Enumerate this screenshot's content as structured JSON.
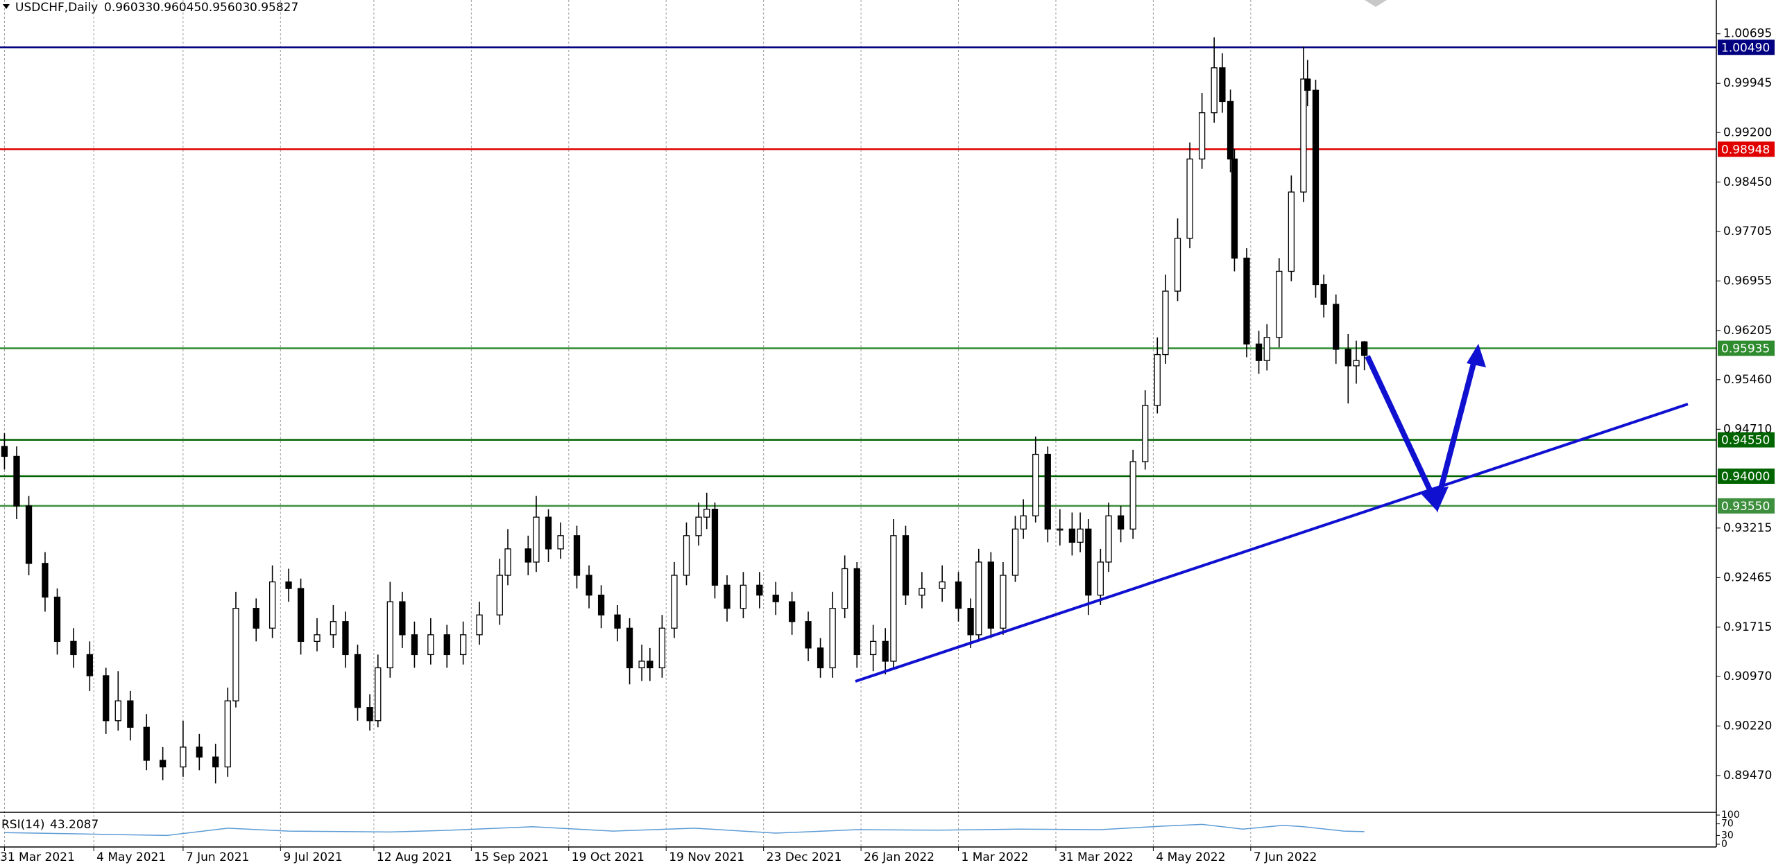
{
  "chart_data": {
    "type": "candlestick",
    "title": "USDCHF,Daily",
    "quote": [
      0.96033,
      0.96045,
      0.95603,
      0.95827
    ],
    "xlim": [
      -1.1,
      421.7
    ],
    "xticks": [
      {
        "value": 0,
        "label": "31 Mar 2021"
      },
      {
        "value": 22,
        "label": "4 May 2021"
      },
      {
        "value": 44,
        "label": "7 Jun 2021"
      },
      {
        "value": 68,
        "label": "9 Jul 2021"
      },
      {
        "value": 91,
        "label": "12 Aug 2021"
      },
      {
        "value": 115,
        "label": "15 Sep 2021"
      },
      {
        "value": 139,
        "label": "19 Oct 2021"
      },
      {
        "value": 163,
        "label": "19 Nov 2021"
      },
      {
        "value": 187,
        "label": "23 Dec 2021"
      },
      {
        "value": 211,
        "label": "26 Jan 2022"
      },
      {
        "value": 235,
        "label": "1 Mar 2022"
      },
      {
        "value": 259,
        "label": "31 Mar 2022"
      },
      {
        "value": 283,
        "label": "4 May 2022"
      },
      {
        "value": 307,
        "label": "7 Jun 2022"
      }
    ],
    "ylim": [
      0.88934,
      1.01206
    ],
    "yticks": [
      1.00695,
      0.99945,
      {
        "value": 0.992,
        "label": "0.99200"
      },
      {
        "value": 0.9845,
        "label": "0.98450"
      },
      0.97705,
      0.96955,
      0.96205,
      {
        "value": 0.9546,
        "label": "0.95460"
      },
      {
        "value": 0.9471,
        "label": "0.94710"
      },
      0.93215,
      0.92465,
      0.91715,
      {
        "value": 0.9097,
        "label": "0.90970"
      },
      {
        "value": 0.9022,
        "label": "0.90220"
      },
      {
        "value": 0.8947,
        "label": "0.89470"
      }
    ],
    "grid": true,
    "up_color": "#ffffff",
    "down_color": "#000000",
    "levels": [
      {
        "value": 1.0049,
        "label": "1.00490",
        "color": "#000080"
      },
      {
        "value": 0.98948,
        "color": "#e00000"
      },
      {
        "value": 0.95935,
        "color": "#2e8b2e"
      },
      {
        "value": 0.9455,
        "label": "0.94550",
        "color": "#006400"
      },
      {
        "value": 0.94,
        "label": "0.94000",
        "color": "#006400"
      },
      {
        "value": 0.9355,
        "label": "0.93550",
        "color": "#3d8f3d"
      }
    ],
    "x": [
      0,
      3,
      6,
      10,
      13,
      17,
      21,
      25,
      28,
      31,
      35,
      39,
      44,
      48,
      52,
      55,
      57,
      62,
      66,
      70,
      73,
      77,
      81,
      84,
      87,
      90,
      92,
      95,
      98,
      101,
      105,
      109,
      113,
      117,
      122,
      124,
      129,
      131,
      134,
      137,
      141,
      144,
      147,
      151,
      154,
      157,
      159,
      162,
      165,
      168,
      171,
      173,
      175,
      178,
      182,
      186,
      190,
      194,
      198,
      201,
      204,
      207,
      210,
      214,
      217,
      219,
      222,
      226,
      231,
      235,
      238,
      240,
      243,
      246,
      249,
      251,
      254,
      257,
      260,
      263,
      265,
      267,
      270,
      272,
      275,
      278,
      281,
      284,
      286,
      289,
      292,
      295,
      298,
      300,
      302,
      303,
      306,
      309,
      311,
      314,
      317,
      320,
      321,
      323,
      325,
      328,
      331,
      333,
      335
    ],
    "open": [
      0.9445,
      0.943,
      0.9355,
      0.9268,
      0.9217,
      0.915,
      0.913,
      0.9098,
      0.903,
      0.906,
      0.902,
      0.897,
      0.896,
      0.899,
      0.8975,
      0.896,
      0.906,
      0.92,
      0.917,
      0.924,
      0.923,
      0.915,
      0.916,
      0.918,
      0.913,
      0.905,
      0.903,
      0.911,
      0.921,
      0.916,
      0.913,
      0.916,
      0.913,
      0.916,
      0.919,
      0.925,
      0.929,
      0.927,
      0.9338,
      0.929,
      0.931,
      0.925,
      0.922,
      0.919,
      0.917,
      0.911,
      0.912,
      0.911,
      0.917,
      0.925,
      0.931,
      0.9338,
      0.935,
      0.9235,
      0.92,
      0.9235,
      0.922,
      0.921,
      0.918,
      0.914,
      0.911,
      0.92,
      0.926,
      0.913,
      0.915,
      0.912,
      0.931,
      0.922,
      0.923,
      0.924,
      0.92,
      0.916,
      0.927,
      0.917,
      0.925,
      0.932,
      0.934,
      0.9433,
      0.932,
      0.932,
      0.93,
      0.932,
      0.922,
      0.927,
      0.934,
      0.932,
      0.9422,
      0.9507,
      0.9584,
      0.968,
      0.976,
      0.988,
      0.995,
      1.0018,
      0.9967,
      0.988,
      0.973,
      0.96,
      0.9575,
      0.961,
      0.971,
      0.983,
      1.0001,
      0.9984,
      0.969,
      0.966,
      0.9592,
      0.9567,
      0.96033
    ],
    "high": [
      0.9465,
      0.9445,
      0.937,
      0.9285,
      0.923,
      0.917,
      0.915,
      0.911,
      0.9105,
      0.9075,
      0.904,
      0.899,
      0.903,
      0.901,
      0.8995,
      0.908,
      0.9225,
      0.9215,
      0.9265,
      0.926,
      0.9245,
      0.9185,
      0.9205,
      0.9195,
      0.9145,
      0.907,
      0.913,
      0.924,
      0.9225,
      0.918,
      0.9185,
      0.9175,
      0.918,
      0.921,
      0.9275,
      0.932,
      0.931,
      0.937,
      0.935,
      0.933,
      0.9325,
      0.9265,
      0.9235,
      0.9205,
      0.9185,
      0.9145,
      0.914,
      0.919,
      0.927,
      0.933,
      0.936,
      0.9375,
      0.936,
      0.925,
      0.9255,
      0.9255,
      0.924,
      0.9225,
      0.9195,
      0.9155,
      0.9225,
      0.928,
      0.927,
      0.9175,
      0.917,
      0.9335,
      0.9325,
      0.9255,
      0.9265,
      0.9255,
      0.9215,
      0.929,
      0.9285,
      0.927,
      0.934,
      0.9365,
      0.946,
      0.9445,
      0.935,
      0.9345,
      0.9345,
      0.9335,
      0.929,
      0.936,
      0.9355,
      0.944,
      0.953,
      0.961,
      0.9705,
      0.979,
      0.9905,
      0.998,
      1.0064,
      1.004,
      0.9985,
      0.9895,
      0.9745,
      0.962,
      0.963,
      0.973,
      0.9855,
      1.005,
      1.003,
      1.0,
      0.9705,
      0.9675,
      0.9615,
      0.9605,
      0.96045
    ],
    "low": [
      0.941,
      0.9335,
      0.925,
      0.9195,
      0.913,
      0.911,
      0.9075,
      0.901,
      0.9015,
      0.9,
      0.8955,
      0.894,
      0.8945,
      0.8955,
      0.8935,
      0.8945,
      0.905,
      0.915,
      0.9155,
      0.921,
      0.913,
      0.9135,
      0.914,
      0.911,
      0.903,
      0.9015,
      0.902,
      0.9095,
      0.914,
      0.911,
      0.9115,
      0.911,
      0.9115,
      0.9145,
      0.9175,
      0.9235,
      0.925,
      0.9255,
      0.927,
      0.9275,
      0.923,
      0.92,
      0.917,
      0.915,
      0.9085,
      0.909,
      0.909,
      0.9095,
      0.9155,
      0.9235,
      0.9295,
      0.932,
      0.9215,
      0.918,
      0.9185,
      0.92,
      0.919,
      0.916,
      0.912,
      0.9095,
      0.9095,
      0.9185,
      0.911,
      0.9105,
      0.91,
      0.911,
      0.9205,
      0.92,
      0.921,
      0.918,
      0.914,
      0.915,
      0.9155,
      0.916,
      0.924,
      0.9305,
      0.933,
      0.93,
      0.9295,
      0.928,
      0.9285,
      0.919,
      0.9205,
      0.9255,
      0.93,
      0.9305,
      0.941,
      0.9495,
      0.957,
      0.9665,
      0.9745,
      0.9865,
      0.9935,
      0.995,
      0.986,
      0.971,
      0.958,
      0.9555,
      0.956,
      0.9595,
      0.9695,
      0.9815,
      0.996,
      0.967,
      0.964,
      0.957,
      0.951,
      0.954,
      0.95603
    ],
    "close": [
      0.943,
      0.9355,
      0.9268,
      0.9217,
      0.915,
      0.913,
      0.9098,
      0.903,
      0.906,
      0.902,
      0.897,
      0.896,
      0.899,
      0.8975,
      0.896,
      0.906,
      0.92,
      0.917,
      0.924,
      0.923,
      0.915,
      0.916,
      0.918,
      0.913,
      0.905,
      0.903,
      0.911,
      0.921,
      0.916,
      0.913,
      0.916,
      0.913,
      0.916,
      0.919,
      0.925,
      0.929,
      0.927,
      0.9338,
      0.929,
      0.931,
      0.925,
      0.922,
      0.919,
      0.917,
      0.911,
      0.912,
      0.911,
      0.917,
      0.925,
      0.931,
      0.9338,
      0.935,
      0.9235,
      0.92,
      0.9235,
      0.922,
      0.921,
      0.918,
      0.914,
      0.911,
      0.92,
      0.926,
      0.913,
      0.915,
      0.912,
      0.931,
      0.922,
      0.923,
      0.924,
      0.92,
      0.916,
      0.927,
      0.917,
      0.925,
      0.932,
      0.934,
      0.9433,
      0.932,
      0.932,
      0.93,
      0.932,
      0.922,
      0.927,
      0.934,
      0.932,
      0.9422,
      0.9507,
      0.9584,
      0.968,
      0.976,
      0.988,
      0.995,
      1.0018,
      0.9967,
      0.988,
      0.973,
      0.96,
      0.9575,
      0.961,
      0.971,
      0.983,
      1.0001,
      0.9984,
      0.969,
      0.966,
      0.9592,
      0.9567,
      0.9575,
      0.95827
    ],
    "rsi": {
      "name": "RSI(14)",
      "color": "#5b9bd5",
      "ylim": [
        0,
        100
      ],
      "yticks": [
        100,
        70,
        30,
        0
      ],
      "x": [
        0,
        20,
        40,
        55,
        70,
        95,
        110,
        130,
        150,
        170,
        190,
        210,
        230,
        250,
        270,
        285,
        295,
        305,
        315,
        320,
        330,
        335
      ],
      "values": [
        40,
        35,
        30,
        55,
        45,
        42,
        48,
        60,
        45,
        55,
        38,
        50,
        48,
        52,
        50,
        62,
        68,
        52,
        65,
        60,
        45,
        43.2087
      ]
    }
  }
}
